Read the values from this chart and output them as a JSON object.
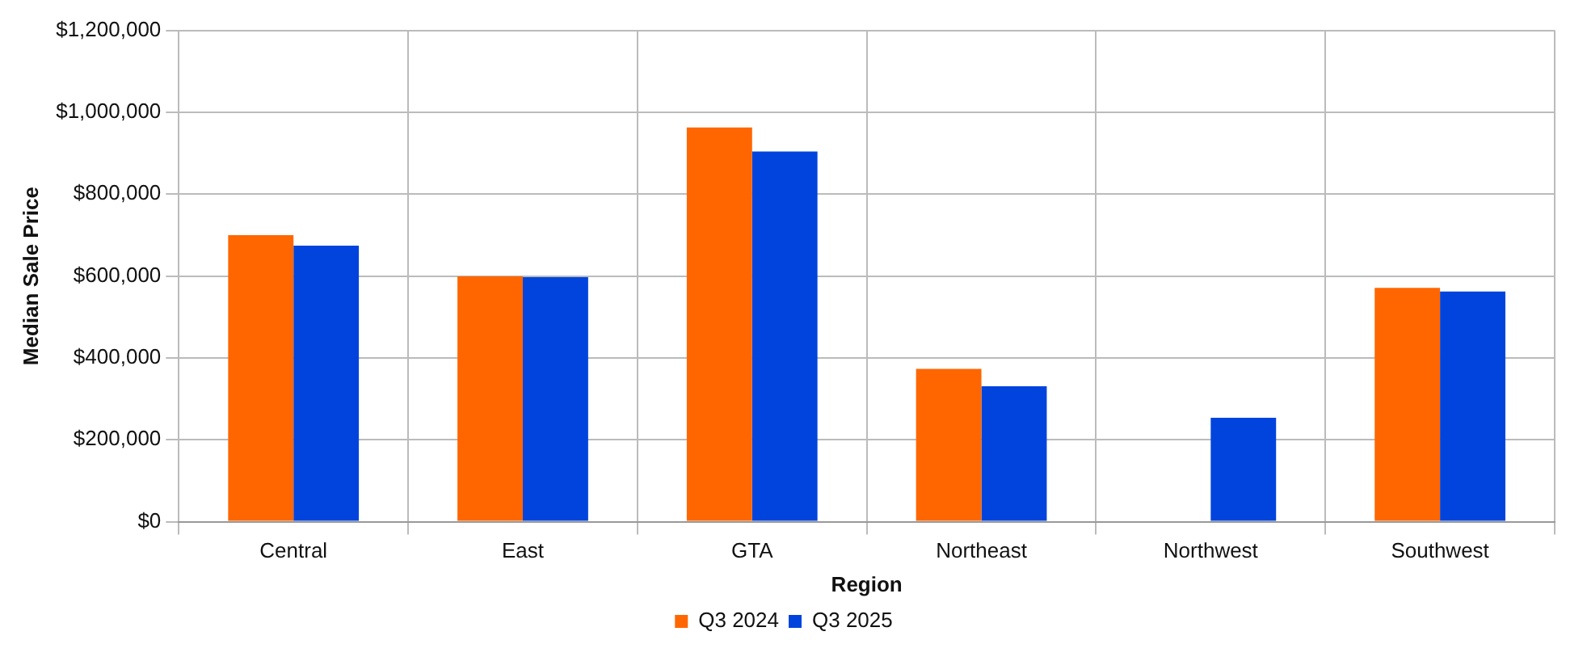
{
  "chart_data": {
    "type": "bar",
    "xlabel": "Region",
    "ylabel": "Median Sale Price",
    "categories": [
      "Central",
      "East",
      "GTA",
      "Northeast",
      "Northwest",
      "Southwest"
    ],
    "series": [
      {
        "name": "Q3 2024",
        "color": "#ff6600",
        "values": [
          700000,
          599000,
          963000,
          373000,
          null,
          571000
        ]
      },
      {
        "name": "Q3 2025",
        "color": "#0044dd",
        "values": [
          674000,
          597000,
          904000,
          331000,
          254000,
          562000
        ]
      }
    ],
    "ylim": [
      0,
      1200000
    ],
    "yticks": [
      {
        "value": 0,
        "label": "$0"
      },
      {
        "value": 200000,
        "label": "$200,000"
      },
      {
        "value": 400000,
        "label": "$400,000"
      },
      {
        "value": 600000,
        "label": "$600,000"
      },
      {
        "value": 800000,
        "label": "$800,000"
      },
      {
        "value": 1000000,
        "label": "$1,000,000"
      },
      {
        "value": 1200000,
        "label": "$1,200,000"
      }
    ],
    "grid": true,
    "legend": "bottom"
  }
}
